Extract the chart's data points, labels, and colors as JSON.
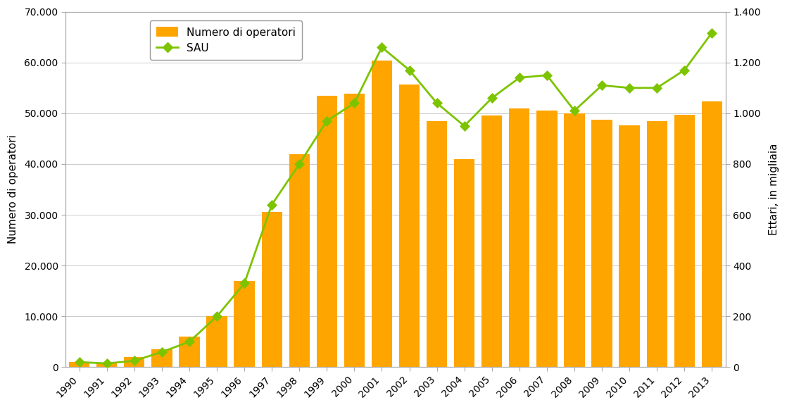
{
  "years": [
    1990,
    1991,
    1992,
    1993,
    1994,
    1995,
    1996,
    1997,
    1998,
    1999,
    2000,
    2001,
    2002,
    2003,
    2004,
    2005,
    2006,
    2007,
    2008,
    2009,
    2010,
    2011,
    2012,
    2013
  ],
  "operators": [
    1000,
    700,
    2000,
    3600,
    6000,
    10000,
    17000,
    30500,
    42000,
    53500,
    53800,
    60400,
    55600,
    48500,
    41000,
    49500,
    51000,
    50500,
    50000,
    48700,
    47600,
    48500,
    49700,
    52400
  ],
  "sau_thousands": [
    20,
    15,
    25,
    60,
    100,
    200,
    330,
    640,
    800,
    970,
    1040,
    1260,
    1170,
    1040,
    950,
    1060,
    1140,
    1150,
    1010,
    1110,
    1100,
    1100,
    1170,
    1317
  ],
  "bar_color": "#FFA500",
  "line_color": "#7DC400",
  "marker_color": "#7DC400",
  "marker_style": "D",
  "left_ylabel": "Numero di operatori",
  "right_ylabel": "Ettari, in migliaia",
  "left_ylim": [
    0,
    70000
  ],
  "right_ylim": [
    0,
    1400
  ],
  "left_yticks": [
    0,
    10000,
    20000,
    30000,
    40000,
    50000,
    60000,
    70000
  ],
  "right_yticks": [
    0,
    200,
    400,
    600,
    800,
    1000,
    1200,
    1400
  ],
  "legend_labels": [
    "Numero di operatori",
    "SAU"
  ],
  "background_color": "#ffffff",
  "spine_color": "#aaaaaa",
  "tick_color": "#555555",
  "axis_fontsize": 11,
  "tick_fontsize": 10,
  "legend_fontsize": 11,
  "bar_width": 0.75
}
